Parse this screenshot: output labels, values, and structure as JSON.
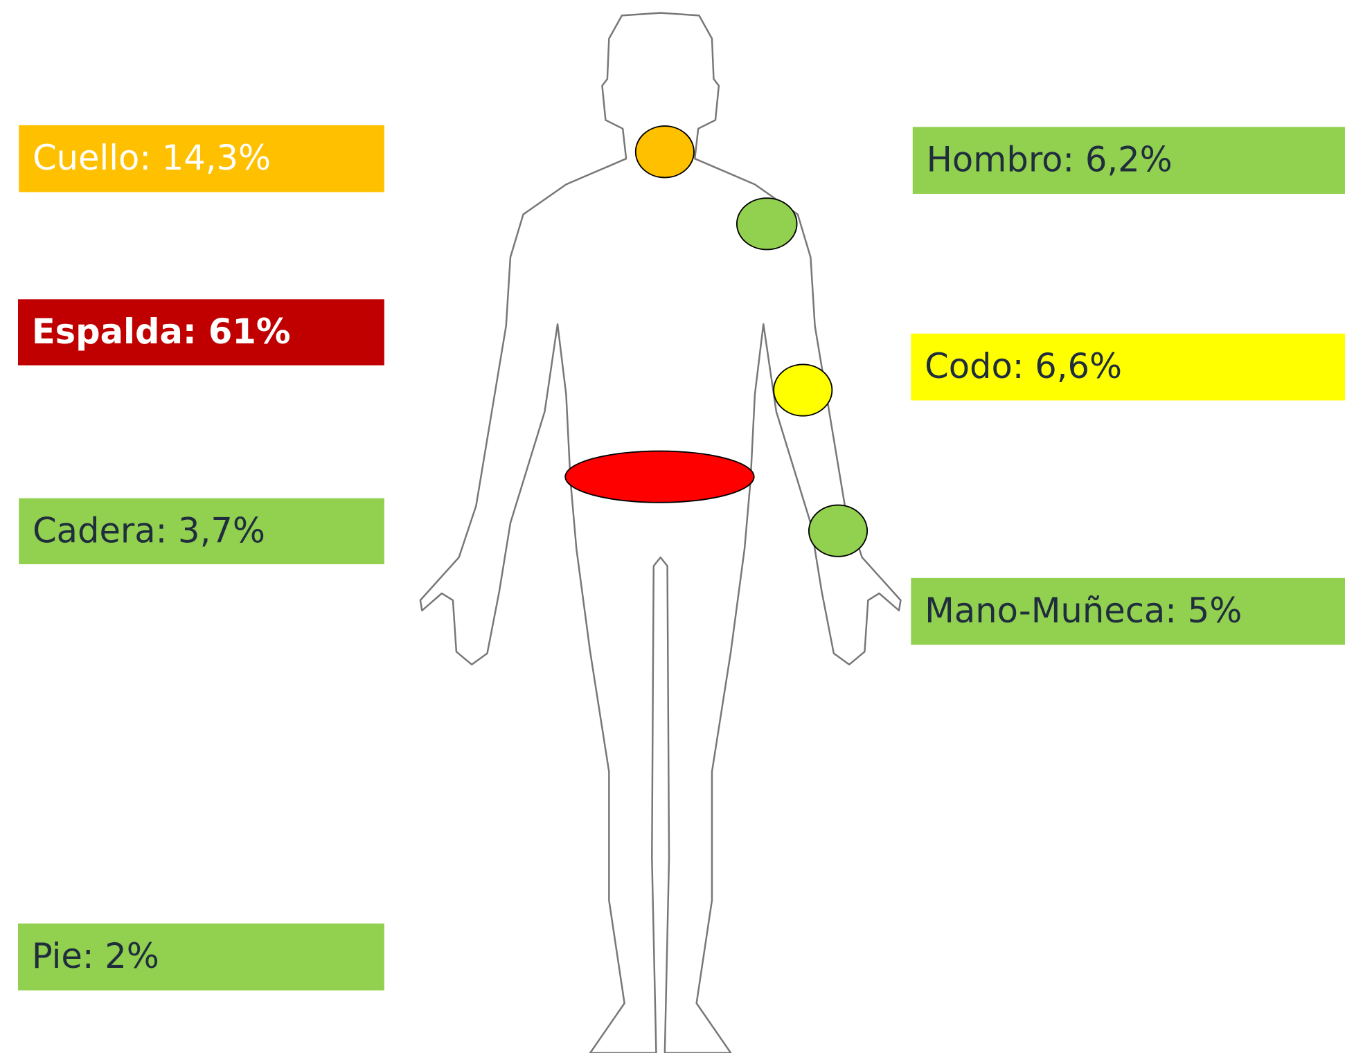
{
  "labels": {
    "neck": "Cuello: 14,3%",
    "back": "Espalda: 61%",
    "hip": "Cadera: 3,7%",
    "foot": "Pie: 2%",
    "shoulder": "Hombro: 6,2%",
    "elbow": "Codo: 6,6%",
    "hand_wrist": "Mano-Muñeca: 5%"
  }
}
